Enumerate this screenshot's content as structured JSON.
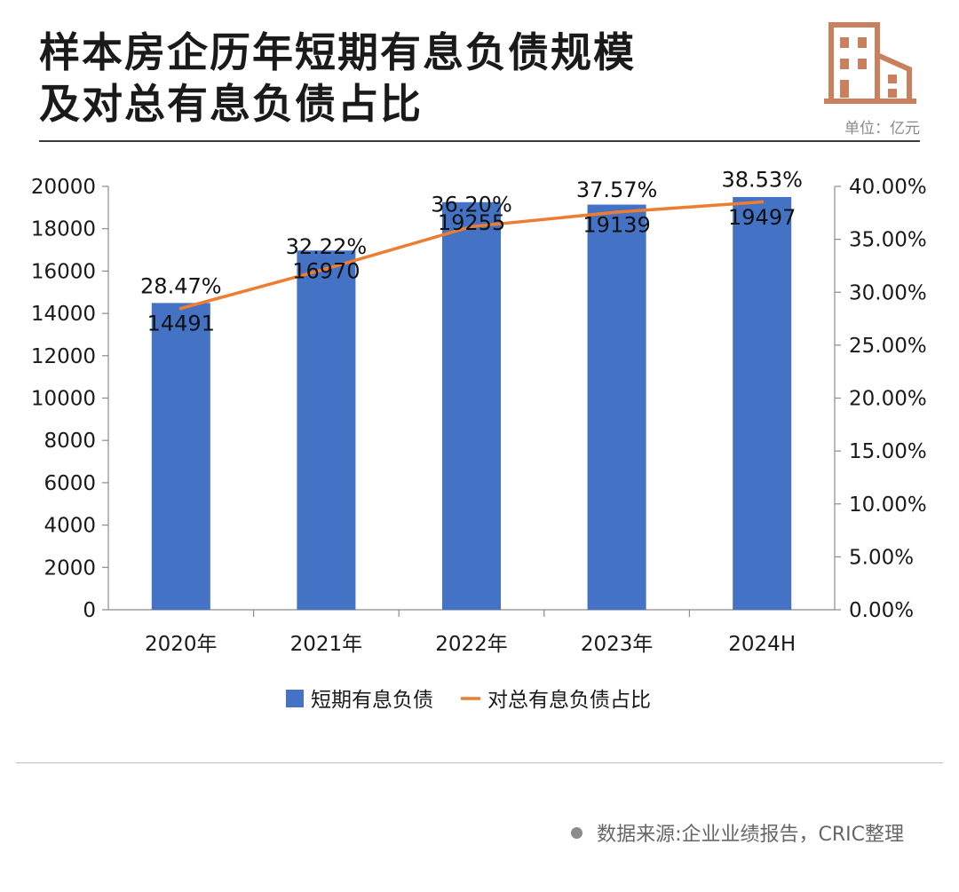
{
  "header": {
    "title_line1": "样本房企历年短期有息负债规模",
    "title_line2": "及对总有息负债占比",
    "unit": "单位：亿元",
    "logo_icon": "building-icon"
  },
  "footer": {
    "source": "数据来源:企业业绩报告，CRIC整理"
  },
  "colors": {
    "bar": "#4472c4",
    "line": "#ed7d31",
    "logo": "#c9805f"
  },
  "chart_data": {
    "type": "bar",
    "categories": [
      "2020年",
      "2021年",
      "2022年",
      "2023年",
      "2024H"
    ],
    "series": [
      {
        "name": "短期有息负债",
        "type": "bar",
        "axis": "left",
        "values": [
          14491,
          16970,
          19255,
          19139,
          19497
        ]
      },
      {
        "name": "对总有息负债占比",
        "type": "line",
        "axis": "right",
        "values": [
          28.47,
          32.22,
          36.2,
          37.57,
          38.53
        ]
      }
    ],
    "y_left": {
      "min": 0,
      "max": 20000,
      "step": 2000,
      "ticks": [
        "0",
        "2000",
        "4000",
        "6000",
        "8000",
        "10000",
        "12000",
        "14000",
        "16000",
        "18000",
        "20000"
      ]
    },
    "y_right": {
      "min": 0,
      "max": 40,
      "step": 5,
      "ticks": [
        "0.00%",
        "5.00%",
        "10.00%",
        "15.00%",
        "20.00%",
        "25.00%",
        "30.00%",
        "35.00%",
        "40.00%"
      ]
    },
    "bar_labels": [
      "14491",
      "16970",
      "19255",
      "19139",
      "19497"
    ],
    "line_labels": [
      "28.47%",
      "32.22%",
      "36.20%",
      "37.57%",
      "38.53%"
    ],
    "grid": false,
    "legend_position": "bottom"
  }
}
